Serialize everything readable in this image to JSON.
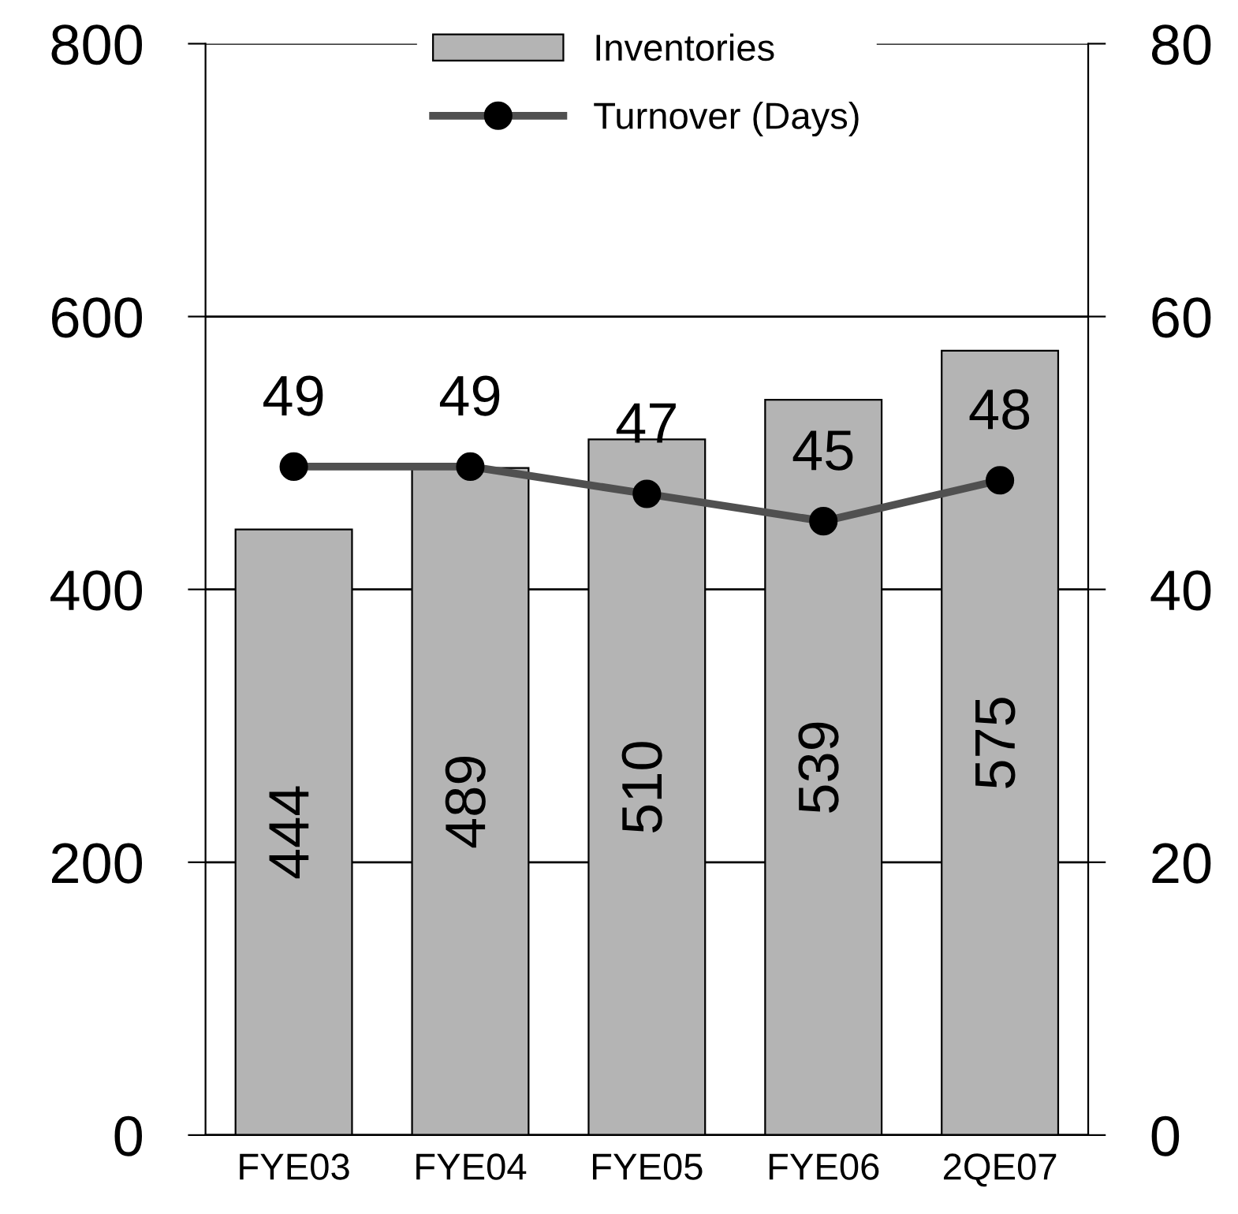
{
  "chart_data": {
    "type": "bar",
    "categories": [
      "FYE03",
      "FYE04",
      "FYE05",
      "FYE06",
      "2QE07"
    ],
    "series": [
      {
        "name": "Inventories",
        "color": "#b4b4b4",
        "values": [
          444,
          489,
          510,
          539,
          575
        ]
      },
      {
        "name": "Turnover (Days)",
        "type": "line",
        "axis": "y2",
        "color": "#505050",
        "values": [
          49,
          49,
          47,
          45,
          48
        ]
      }
    ],
    "ylim": [
      0,
      800
    ],
    "yticks": [
      0,
      200,
      400,
      600,
      800
    ],
    "y2lim": [
      0,
      80
    ],
    "y2ticks": [
      0,
      20,
      40,
      60,
      80
    ],
    "grid": "y",
    "legend": "top",
    "marker": "circle",
    "data_labels": true
  }
}
